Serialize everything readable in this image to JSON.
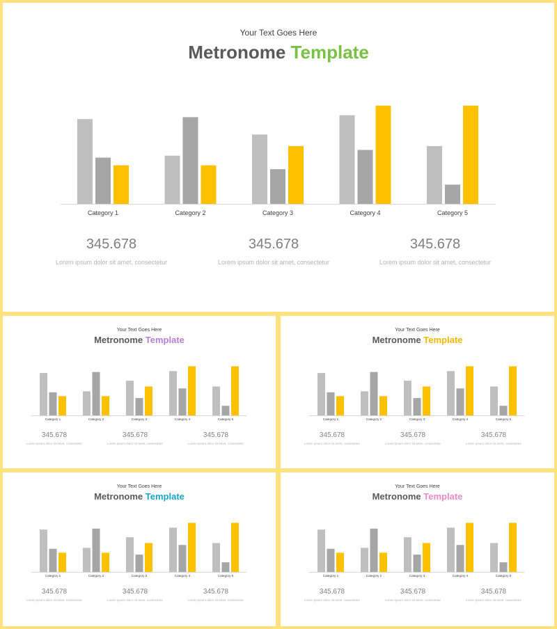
{
  "chart_data": {
    "type": "bar",
    "categories": [
      "Category 1",
      "Category 2",
      "Category 3",
      "Category 4",
      "Category 5"
    ],
    "series": [
      {
        "values": [
          4.4,
          2.5,
          3.6,
          4.6,
          3.0
        ],
        "color": "#bfbfbf"
      },
      {
        "values": [
          2.4,
          4.5,
          1.8,
          2.8,
          1.0
        ],
        "color": "#a6a6a6"
      },
      {
        "values": [
          2.0,
          2.0,
          3.0,
          5.1,
          5.1
        ],
        "color": "#ffc000"
      }
    ],
    "ylim": [
      0,
      5.2
    ]
  },
  "slides": [
    {
      "subtitle": "Your Text Goes Here",
      "title_part1": "Metronome",
      "title_part2": "Template",
      "accent": "#7ac143",
      "stats": [
        {
          "value": "345.678",
          "text": "Lorem ipsum dolor sit amet, consectetur"
        },
        {
          "value": "345.678",
          "text": "Lorem ipsum dolor sit amet, consectetur"
        },
        {
          "value": "345.678",
          "text": "Lorem ipsum dolor sit amet, consectetur"
        }
      ]
    },
    {
      "subtitle": "Your Text Goes Here",
      "title_part1": "Metronome",
      "title_part2": "Template",
      "accent": "#b57fd6",
      "stats": [
        {
          "value": "345.678",
          "text": "Lorem ipsum dolor sit amet, consectetur"
        },
        {
          "value": "345.678",
          "text": "Lorem ipsum dolor sit amet, consectetur"
        },
        {
          "value": "345.678",
          "text": "Lorem ipsum dolor sit amet, consectetur"
        }
      ]
    },
    {
      "subtitle": "Your Text Goes Here",
      "title_part1": "Metronome",
      "title_part2": "Template",
      "accent": "#f0b800",
      "stats": [
        {
          "value": "345.678",
          "text": "Lorem ipsum dolor sit amet, consectetur"
        },
        {
          "value": "345.678",
          "text": "Lorem ipsum dolor sit amet, consectetur"
        },
        {
          "value": "345.678",
          "text": "Lorem ipsum dolor sit amet, consectetur"
        }
      ]
    },
    {
      "subtitle": "Your Text Goes Here",
      "title_part1": "Metronome",
      "title_part2": "Template",
      "accent": "#1aa3c9",
      "stats": [
        {
          "value": "345.678",
          "text": "Lorem ipsum dolor sit amet, consectetur"
        },
        {
          "value": "345.678",
          "text": "Lorem ipsum dolor sit amet, consectetur"
        },
        {
          "value": "345.678",
          "text": "Lorem ipsum dolor sit amet, consectetur"
        }
      ]
    },
    {
      "subtitle": "Your Text Goes Here",
      "title_part1": "Metronome",
      "title_part2": "Template",
      "accent": "#e98ac4",
      "stats": [
        {
          "value": "345.678",
          "text": "Lorem ipsum dolor sit amet, consectetur"
        },
        {
          "value": "345.678",
          "text": "Lorem ipsum dolor sit amet, consectetur"
        },
        {
          "value": "345.678",
          "text": "Lorem ipsum dolor sit amet, consectetur"
        }
      ]
    }
  ]
}
